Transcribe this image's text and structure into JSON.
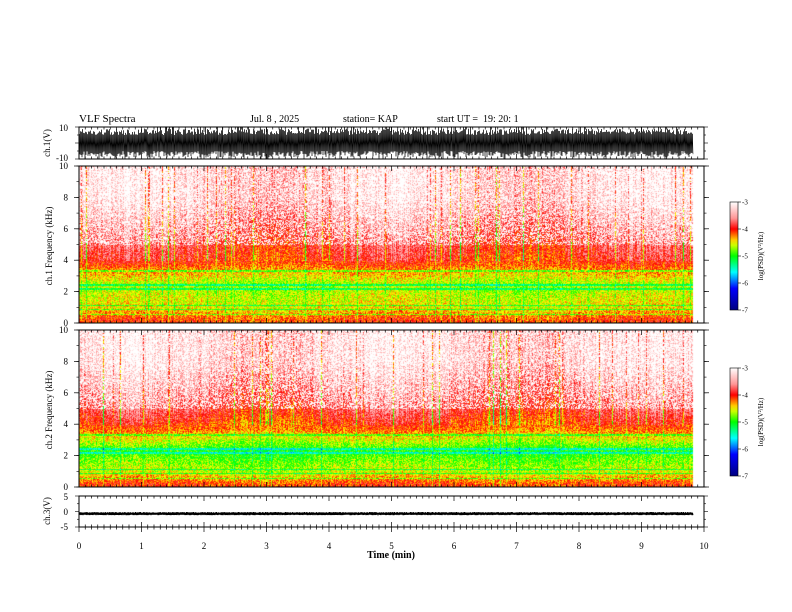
{
  "header": {
    "title": "VLF Spectra",
    "date": "Jul. 8 , 2025",
    "station": "station= KAP",
    "start": "start UT =  19: 20: 1"
  },
  "chart_data": [
    {
      "type": "line",
      "name": "waveform-ch1",
      "ylabel": "ch.1(V)",
      "ylim": [
        -10,
        10
      ],
      "yticks": [
        "10",
        "-10"
      ],
      "xlim": [
        0,
        10
      ],
      "data_extent_min": 9.83,
      "envelope": "dense oscillation spanning about -9 to +9 V"
    },
    {
      "type": "heatmap",
      "name": "spectrogram-ch1",
      "ylabel": "ch.1  Frequency  (kHz)",
      "ylim": [
        0,
        10
      ],
      "yticks": [
        "0",
        "2",
        "4",
        "6",
        "8",
        "10"
      ],
      "xlim": [
        0,
        10
      ],
      "data_extent_min": 9.83,
      "intensity_by_freq_khz": [
        {
          "band": [
            0,
            0.5
          ],
          "log_psd": -4.1
        },
        {
          "band": [
            0.5,
            1.5
          ],
          "log_psd": -4.5
        },
        {
          "band": [
            1.5,
            3.5
          ],
          "log_psd": -4.7
        },
        {
          "band": [
            3.5,
            4.5
          ],
          "log_psd": -4.0
        },
        {
          "band": [
            4.5,
            6
          ],
          "log_psd": -3.8
        },
        {
          "band": [
            6,
            10
          ],
          "log_psd": -3.3
        }
      ],
      "colorbar": {
        "label": "log(PSD)(V²/Hz)",
        "range": [
          -7,
          -3
        ],
        "ticks": [
          "-3",
          "-4",
          "-5",
          "-6",
          "-7"
        ],
        "colors": [
          "#ffffff",
          "#ff0000",
          "#ffff00",
          "#00ff00",
          "#00ffff",
          "#0000ff",
          "#000080"
        ]
      }
    },
    {
      "type": "heatmap",
      "name": "spectrogram-ch2",
      "ylabel": "ch.2  Frequency  (kHz)",
      "ylim": [
        0,
        10
      ],
      "yticks": [
        "0",
        "2",
        "4",
        "6",
        "8",
        "10"
      ],
      "xlim": [
        0,
        10
      ],
      "data_extent_min": 9.83,
      "intensity_by_freq_khz": [
        {
          "band": [
            0,
            0.5
          ],
          "log_psd": -4.1
        },
        {
          "band": [
            0.5,
            1.5
          ],
          "log_psd": -4.6
        },
        {
          "band": [
            1.5,
            3.2
          ],
          "log_psd": -5.0
        },
        {
          "band": [
            3.2,
            4.2
          ],
          "log_psd": -4.2
        },
        {
          "band": [
            4.2,
            6
          ],
          "log_psd": -3.8
        },
        {
          "band": [
            6,
            10
          ],
          "log_psd": -3.3
        }
      ],
      "colorbar": {
        "label": "log(PSD)(V²/Hz)",
        "range": [
          -7,
          -3
        ],
        "ticks": [
          "-3",
          "-4",
          "-5",
          "-6",
          "-7"
        ],
        "colors": [
          "#ffffff",
          "#ff0000",
          "#ffff00",
          "#00ff00",
          "#00ffff",
          "#0000ff",
          "#000080"
        ]
      }
    },
    {
      "type": "line",
      "name": "waveform-ch3",
      "ylabel": "ch.3(V)",
      "ylim": [
        -5,
        5
      ],
      "yticks": [
        "5",
        "0",
        "-5"
      ],
      "xlim": [
        0,
        10
      ],
      "data_extent_min": 9.83,
      "envelope": "narrow band around -1.2 to -0.2 V"
    }
  ],
  "xaxis": {
    "label": "Time  (min)",
    "ticks": [
      "0",
      "1",
      "2",
      "3",
      "4",
      "5",
      "6",
      "7",
      "8",
      "9",
      "10"
    ]
  }
}
